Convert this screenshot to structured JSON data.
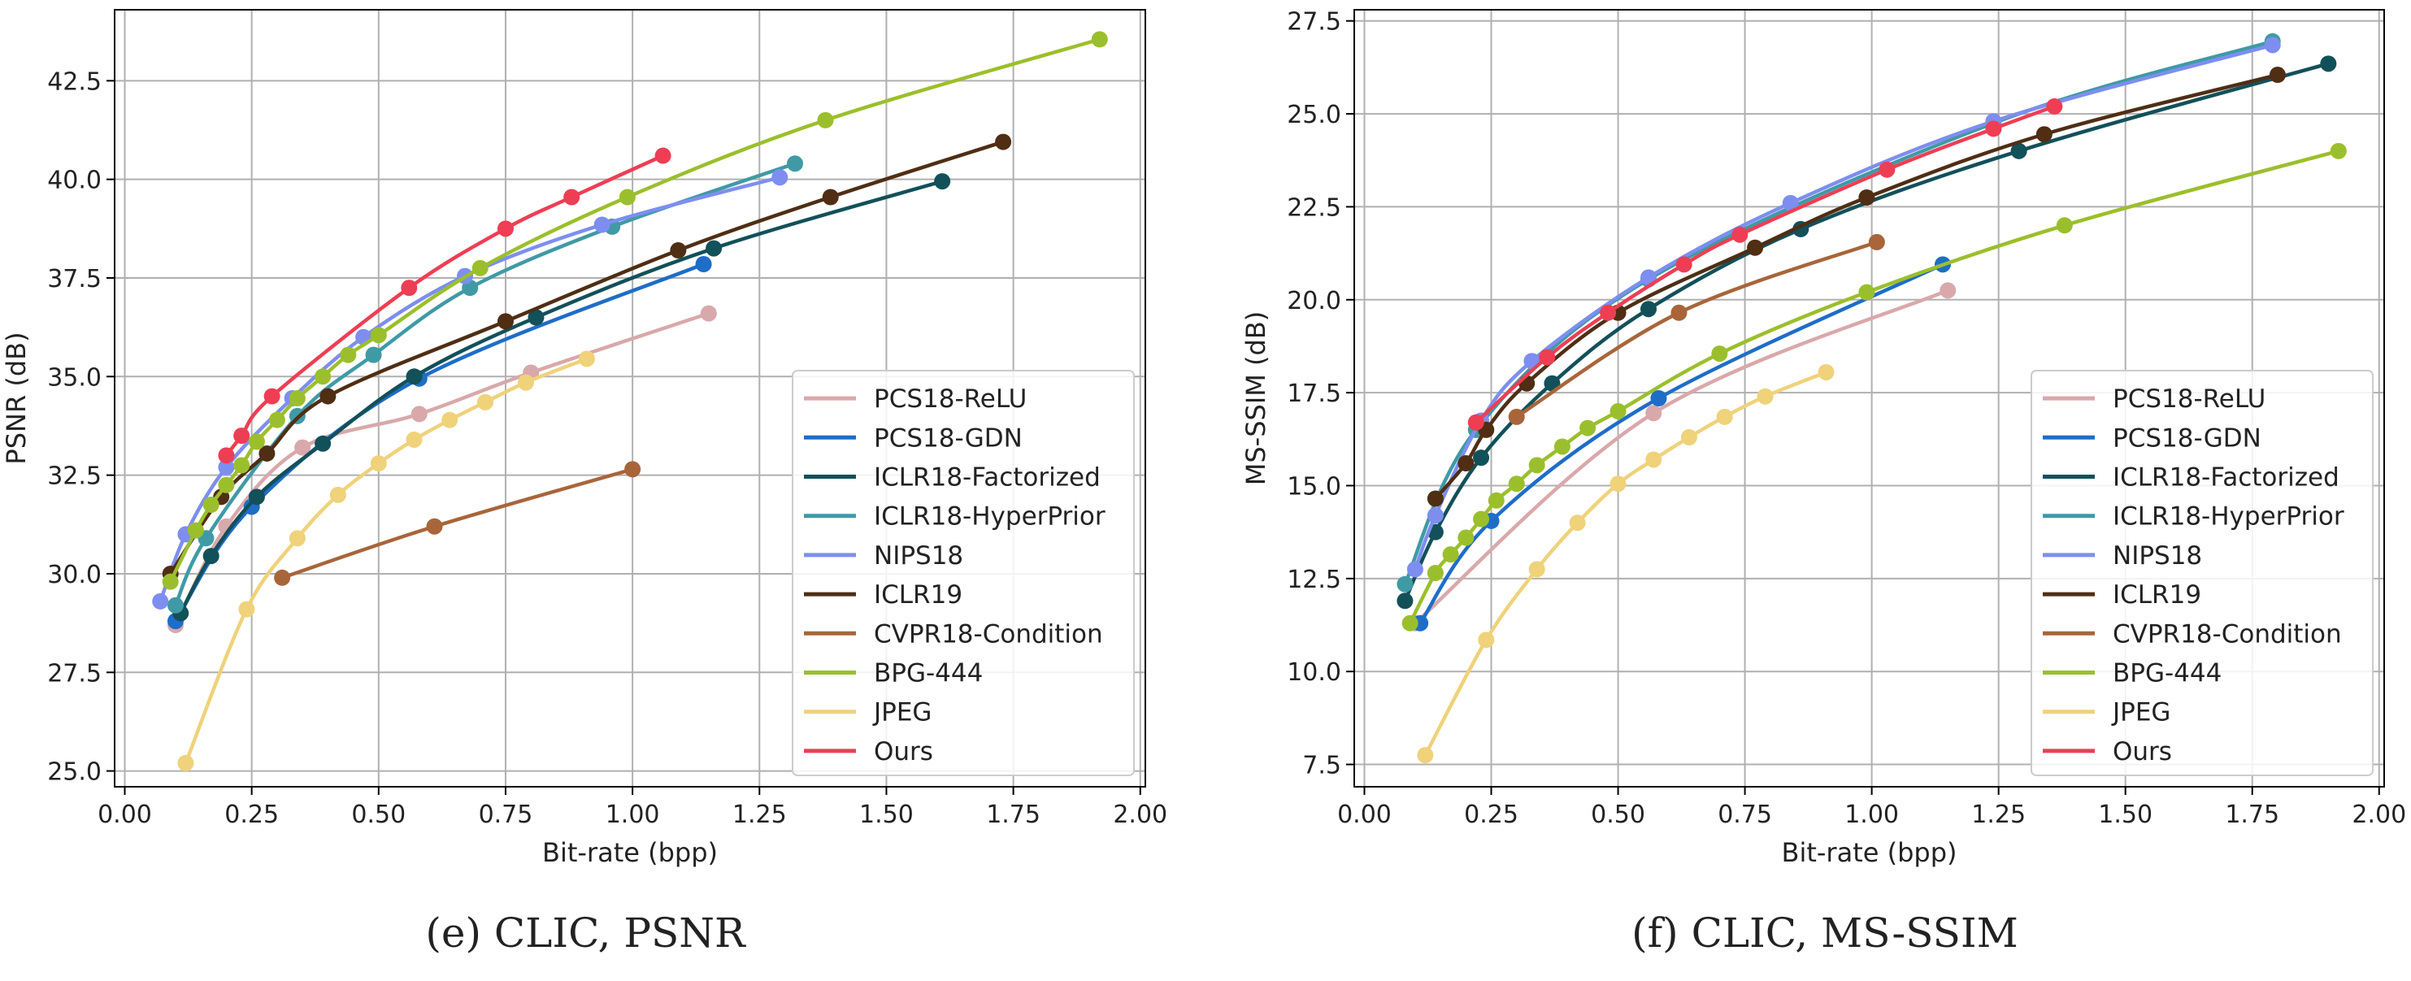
{
  "colors": {
    "PCS18-ReLU": "#d9a8ab",
    "PCS18-GDN": "#1e6dc8",
    "ICLR18-Factorized": "#12505a",
    "ICLR18-HyperPrior": "#3f9aa6",
    "NIPS18": "#7d8ef0",
    "ICLR19": "#4f2e14",
    "CVPR18-Condition": "#a8653a",
    "BPG-444": "#9bbf2c",
    "JPEG": "#efd27a",
    "Ours": "#ee3e54"
  },
  "chart_data": [
    {
      "type": "line",
      "caption": "(e) CLIC, PSNR",
      "xlabel": "Bit-rate (bpp)",
      "ylabel": "PSNR (dB)",
      "xlim": [
        -0.02,
        2.01
      ],
      "ylim": [
        24.6,
        44.3
      ],
      "xticks": [
        "0.00",
        "0.25",
        "0.50",
        "0.75",
        "1.00",
        "1.25",
        "1.50",
        "1.75",
        "2.00"
      ],
      "yticks": [
        "25.0",
        "27.5",
        "30.0",
        "32.5",
        "35.0",
        "37.5",
        "40.0",
        "42.5"
      ],
      "grid": true,
      "legend_position": "lower-right",
      "series": [
        {
          "name": "PCS18-ReLU",
          "x": [
            0.1,
            0.2,
            0.35,
            0.58,
            0.8,
            1.15
          ],
          "y": [
            28.7,
            31.2,
            33.2,
            34.05,
            35.1,
            36.6
          ]
        },
        {
          "name": "PCS18-GDN",
          "x": [
            0.1,
            0.25,
            0.58,
            1.14
          ],
          "y": [
            28.8,
            31.7,
            34.95,
            37.85
          ]
        },
        {
          "name": "ICLR18-Factorized",
          "x": [
            0.11,
            0.17,
            0.26,
            0.39,
            0.57,
            0.81,
            1.16,
            1.61
          ],
          "y": [
            29.0,
            30.45,
            31.95,
            33.3,
            35.0,
            36.5,
            38.25,
            39.95
          ]
        },
        {
          "name": "ICLR18-HyperPrior",
          "x": [
            0.1,
            0.16,
            0.34,
            0.49,
            0.68,
            0.96,
            1.32
          ],
          "y": [
            29.2,
            30.9,
            34.0,
            35.55,
            37.25,
            38.8,
            40.4
          ]
        },
        {
          "name": "NIPS18",
          "x": [
            0.07,
            0.12,
            0.2,
            0.33,
            0.47,
            0.67,
            0.94,
            1.29
          ],
          "y": [
            29.3,
            31.0,
            32.7,
            34.45,
            36.0,
            37.55,
            38.85,
            40.05
          ]
        },
        {
          "name": "ICLR19",
          "x": [
            0.09,
            0.19,
            0.28,
            0.4,
            0.75,
            1.09,
            1.39,
            1.73
          ],
          "y": [
            30.0,
            31.95,
            33.05,
            34.5,
            36.4,
            38.2,
            39.55,
            40.95
          ]
        },
        {
          "name": "CVPR18-Condition",
          "x": [
            0.31,
            0.61,
            1.0
          ],
          "y": [
            29.9,
            31.2,
            32.65
          ]
        },
        {
          "name": "BPG-444",
          "x": [
            0.09,
            0.14,
            0.17,
            0.2,
            0.23,
            0.26,
            0.3,
            0.34,
            0.39,
            0.44,
            0.5,
            0.7,
            0.99,
            1.38,
            1.92
          ],
          "y": [
            29.8,
            31.1,
            31.75,
            32.25,
            32.75,
            33.35,
            33.9,
            34.45,
            35.0,
            35.55,
            36.05,
            37.75,
            39.55,
            41.5,
            43.55
          ]
        },
        {
          "name": "JPEG",
          "x": [
            0.12,
            0.24,
            0.34,
            0.42,
            0.5,
            0.57,
            0.64,
            0.71,
            0.79,
            0.91
          ],
          "y": [
            25.2,
            29.1,
            30.9,
            32.0,
            32.8,
            33.4,
            33.9,
            34.35,
            34.85,
            35.45
          ]
        },
        {
          "name": "Ours",
          "x": [
            0.2,
            0.23,
            0.29,
            0.56,
            0.75,
            0.88,
            1.06
          ],
          "y": [
            33.0,
            33.5,
            34.5,
            37.25,
            38.75,
            39.55,
            40.6
          ]
        }
      ]
    },
    {
      "type": "line",
      "caption": "(f) CLIC, MS-SSIM",
      "xlabel": "Bit-rate (bpp)",
      "ylabel": "MS-SSIM (dB)",
      "xlim": [
        -0.02,
        2.01
      ],
      "ylim": [
        6.9,
        27.8
      ],
      "xticks": [
        "0.00",
        "0.25",
        "0.50",
        "0.75",
        "1.00",
        "1.25",
        "1.50",
        "1.75",
        "2.00"
      ],
      "yticks": [
        "7.5",
        "10.0",
        "12.5",
        "15.0",
        "17.5",
        "20.0",
        "22.5",
        "25.0",
        "27.5"
      ],
      "grid": true,
      "legend_position": "lower-right",
      "series": [
        {
          "name": "PCS18-ReLU",
          "x": [
            0.1,
            0.57,
            1.15
          ],
          "y": [
            11.3,
            16.95,
            20.25
          ]
        },
        {
          "name": "PCS18-GDN",
          "x": [
            0.11,
            0.25,
            0.58,
            1.14
          ],
          "y": [
            11.3,
            14.05,
            17.35,
            20.95
          ]
        },
        {
          "name": "ICLR18-Factorized",
          "x": [
            0.08,
            0.14,
            0.23,
            0.37,
            0.56,
            0.86,
            1.29,
            1.9
          ],
          "y": [
            11.9,
            13.75,
            15.75,
            17.75,
            19.75,
            21.9,
            24.0,
            26.35
          ]
        },
        {
          "name": "ICLR18-HyperPrior",
          "x": [
            0.08,
            0.22,
            0.56,
            1.24,
            1.79
          ],
          "y": [
            12.35,
            16.5,
            20.55,
            24.75,
            26.95
          ]
        },
        {
          "name": "NIPS18",
          "x": [
            0.1,
            0.14,
            0.23,
            0.33,
            0.56,
            0.84,
            1.24,
            1.79
          ],
          "y": [
            12.75,
            14.2,
            16.75,
            18.35,
            20.6,
            22.6,
            24.8,
            26.85
          ]
        },
        {
          "name": "ICLR19",
          "x": [
            0.14,
            0.2,
            0.24,
            0.32,
            0.5,
            0.77,
            0.99,
            1.34,
            1.8
          ],
          "y": [
            14.65,
            15.6,
            16.5,
            17.75,
            19.65,
            21.4,
            22.75,
            24.45,
            26.05
          ]
        },
        {
          "name": "CVPR18-Condition",
          "x": [
            0.3,
            0.62,
            1.01
          ],
          "y": [
            16.85,
            19.65,
            21.55
          ]
        },
        {
          "name": "BPG-444",
          "x": [
            0.09,
            0.14,
            0.17,
            0.2,
            0.23,
            0.26,
            0.3,
            0.34,
            0.39,
            0.44,
            0.5,
            0.7,
            0.99,
            1.38,
            1.92
          ],
          "y": [
            11.3,
            12.65,
            13.15,
            13.6,
            14.1,
            14.6,
            15.05,
            15.55,
            16.05,
            16.55,
            17.0,
            18.55,
            20.2,
            22.0,
            24.0
          ]
        },
        {
          "name": "JPEG",
          "x": [
            0.12,
            0.24,
            0.34,
            0.42,
            0.5,
            0.57,
            0.64,
            0.71,
            0.79,
            0.91
          ],
          "y": [
            7.75,
            10.85,
            12.75,
            14.0,
            15.05,
            15.7,
            16.3,
            16.85,
            17.4,
            18.05
          ]
        },
        {
          "name": "Ours",
          "x": [
            0.22,
            0.36,
            0.48,
            0.63,
            0.74,
            1.03,
            1.24,
            1.36
          ],
          "y": [
            16.7,
            18.45,
            19.65,
            20.95,
            21.75,
            23.5,
            24.6,
            25.2
          ]
        }
      ]
    }
  ]
}
